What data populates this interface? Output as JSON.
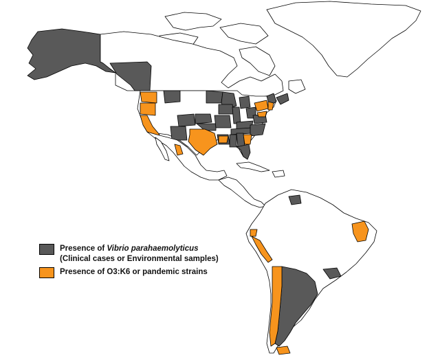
{
  "colors": {
    "presence": "#595959",
    "pandemic": "#f7941d",
    "land": "#ffffff",
    "border": "#000000"
  },
  "legend": {
    "presence_prefix": "Presence of ",
    "presence_species": "Vibrio parahaemolyticus",
    "presence_note": "(Clinical cases or Environmental samples)",
    "pandemic_label": "Presence of O3:K6 or pandemic strains"
  }
}
